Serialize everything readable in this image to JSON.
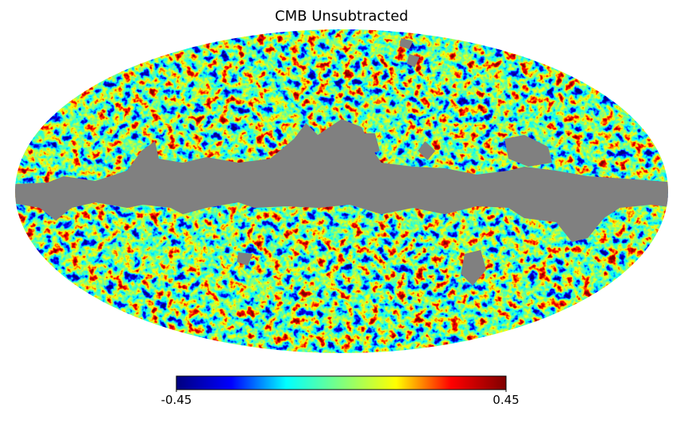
{
  "chart_data": {
    "type": "mollweide",
    "title": "CMB Unsubtracted",
    "clim": [
      -0.45,
      0.45
    ],
    "cticks": [
      -0.45,
      0.45
    ],
    "colormap": [
      "#00007f",
      "#0000ff",
      "#00ffff",
      "#7fff7f",
      "#ffff00",
      "#ff0000",
      "#7f0000"
    ],
    "mask_color": "#808080"
  }
}
